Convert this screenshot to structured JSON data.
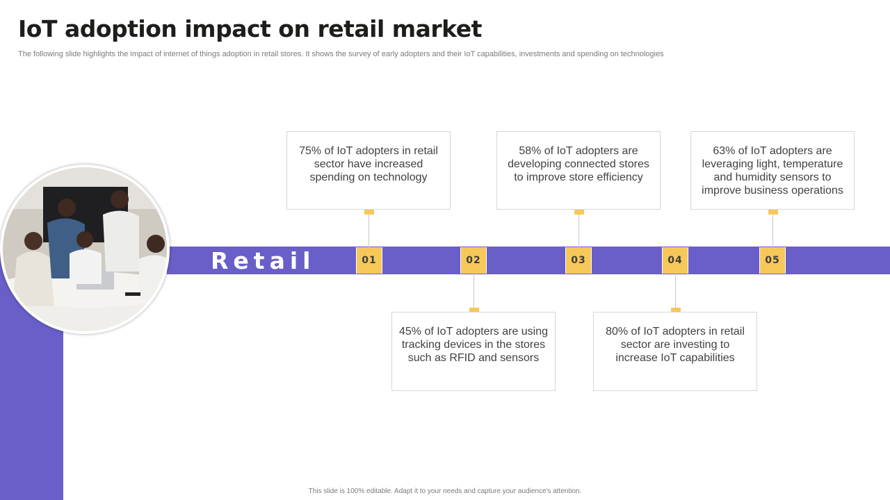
{
  "title": "IoT adoption impact on retail market",
  "subtitle": "The following slide highlights the impact of internet of things adoption in retail stores. It shows the survey of early adopters and their IoT capabilities, investments and spending on technologies",
  "band_label": "Retail",
  "steps": [
    {
      "number": "01",
      "text": "75% of IoT adopters in retail sector have increased spending on technology"
    },
    {
      "number": "02",
      "text": "45% of IoT adopters are using tracking devices in the stores such as RFID and sensors"
    },
    {
      "number": "03",
      "text": "58% of IoT adopters are developing connected stores to improve store efficiency"
    },
    {
      "number": "04",
      "text": "80% of IoT adopters in retail sector are investing to increase IoT capabilities"
    },
    {
      "number": "05",
      "text": "63% of IoT adopters are leveraging light, temperature and humidity sensors to improve business operations"
    }
  ],
  "photo_icon": "team-meeting-photo",
  "colors": {
    "accent": "#6a5ec9",
    "highlight": "#f6c859"
  },
  "footer": "This slide is 100% editable. Adapt it to your needs and capture your audience's attention."
}
